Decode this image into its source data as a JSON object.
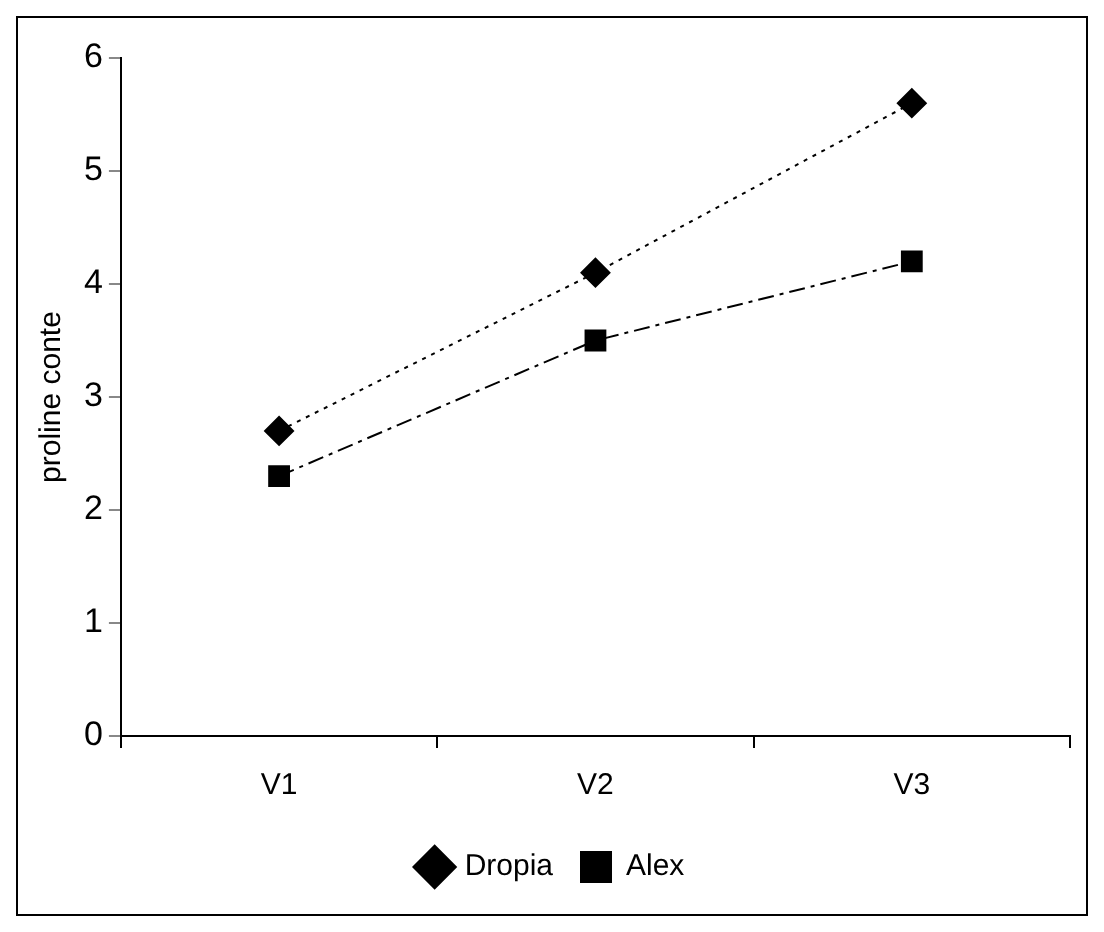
{
  "chart_data": {
    "type": "line",
    "ylabel": "proline conte",
    "categories": [
      "V1",
      "V2",
      "V3"
    ],
    "series": [
      {
        "name": "Dropia",
        "color": "#000000",
        "values": [
          2.7,
          4.1,
          5.6
        ],
        "marker": "diamond",
        "line_style": "dotted"
      },
      {
        "name": "Alex",
        "color": "#000000",
        "values": [
          2.3,
          3.5,
          4.2
        ],
        "marker": "square",
        "line_style": "dashdot"
      }
    ],
    "ylim": [
      0,
      6
    ],
    "yticks": [
      0,
      1,
      2,
      3,
      4,
      5,
      6
    ],
    "grid": false,
    "legend": "bottom"
  }
}
